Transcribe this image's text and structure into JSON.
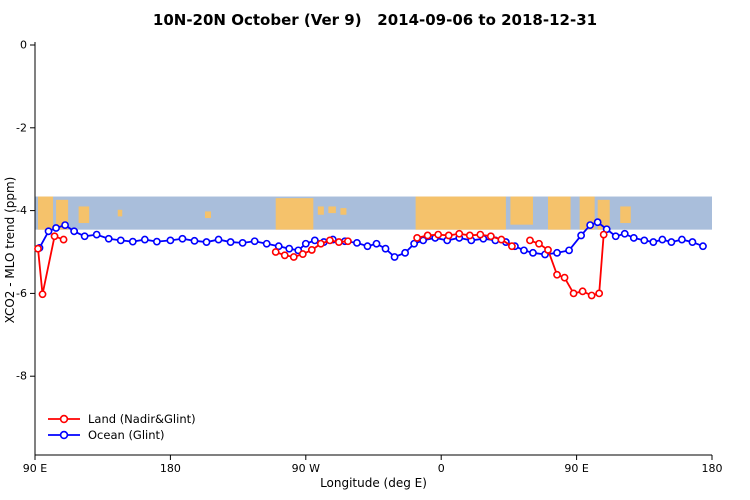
{
  "chart_data": {
    "type": "line",
    "title": "10N-20N October (Ver 9)   2014-09-06 to 2018-12-31",
    "xlabel": "Longitude (deg E)",
    "ylabel": "XCO2 - MLO trend (ppm)",
    "x_range": [
      0,
      450
    ],
    "ylim": [
      -9.9,
      0.1
    ],
    "grid": "off",
    "legend_position": "bottom-left",
    "x_ticks": [
      {
        "label": "90 E",
        "offset": 0
      },
      {
        "label": "180",
        "offset": 90
      },
      {
        "label": "90 W",
        "offset": 180
      },
      {
        "label": "0",
        "offset": 270
      },
      {
        "label": "90 E",
        "offset": 360
      },
      {
        "label": "180",
        "offset": 450
      }
    ],
    "y_ticks": [
      {
        "label": "0",
        "value": 0
      },
      {
        "label": "-2",
        "value": -2
      },
      {
        "label": "-4",
        "value": -4
      },
      {
        "label": "-6",
        "value": -6
      },
      {
        "label": "-8",
        "value": -8
      }
    ],
    "map_band": {
      "description": "world-map strip 10N-20N drawn across the plot",
      "ppm_top": -3.66,
      "ppm_bottom": -4.46,
      "ocean_color": "#a9bedb",
      "land_color": "#f5c26b",
      "land_segments": [
        [
          2,
          12,
          0,
          1
        ],
        [
          14,
          22,
          0.1,
          1
        ],
        [
          29,
          36,
          0.3,
          0.8
        ],
        [
          55,
          58,
          0.4,
          0.6
        ],
        [
          113,
          117,
          0.45,
          0.65
        ],
        [
          160,
          185,
          0.05,
          1
        ],
        [
          188,
          192,
          0.3,
          0.55
        ],
        [
          195,
          200,
          0.3,
          0.5
        ],
        [
          203,
          207,
          0.35,
          0.55
        ],
        [
          253,
          313,
          0,
          1
        ],
        [
          316,
          331,
          0,
          0.85
        ],
        [
          341,
          356,
          0,
          1
        ],
        [
          362,
          372,
          0,
          1
        ],
        [
          374,
          382,
          0.1,
          1
        ],
        [
          389,
          396,
          0.3,
          0.8
        ]
      ]
    },
    "series": [
      {
        "id": "land",
        "name": "Land (Nadir&Glint)",
        "color": "#ff0000",
        "segments": [
          [
            [
              2,
              -4.92
            ],
            [
              5,
              -6.02
            ],
            [
              13,
              -4.62
            ],
            [
              19,
              -4.7
            ]
          ],
          [
            [
              160,
              -5.0
            ],
            [
              166,
              -5.08
            ],
            [
              172,
              -5.12
            ],
            [
              178,
              -5.05
            ],
            [
              184,
              -4.95
            ],
            [
              190,
              -4.8
            ],
            [
              196,
              -4.72
            ],
            [
              202,
              -4.76
            ],
            [
              208,
              -4.74
            ]
          ],
          [
            [
              254,
              -4.66
            ],
            [
              261,
              -4.6
            ],
            [
              268,
              -4.58
            ],
            [
              275,
              -4.6
            ],
            [
              282,
              -4.56
            ],
            [
              289,
              -4.6
            ],
            [
              296,
              -4.58
            ],
            [
              303,
              -4.62
            ],
            [
              310,
              -4.7
            ],
            [
              317,
              -4.86
            ]
          ],
          [
            [
              329,
              -4.72
            ],
            [
              335,
              -4.8
            ],
            [
              341,
              -4.95
            ],
            [
              347,
              -5.55
            ],
            [
              352,
              -5.62
            ],
            [
              358,
              -6.0
            ],
            [
              364,
              -5.95
            ],
            [
              370,
              -6.05
            ],
            [
              375,
              -6.0
            ],
            [
              378,
              -4.58
            ]
          ]
        ]
      },
      {
        "id": "ocean",
        "name": "Ocean (Glint)",
        "color": "#0000ff",
        "segments": [
          [
            [
              3,
              -4.9
            ],
            [
              9,
              -4.5
            ],
            [
              14,
              -4.42
            ],
            [
              20,
              -4.35
            ],
            [
              26,
              -4.5
            ],
            [
              33,
              -4.62
            ],
            [
              41,
              -4.58
            ],
            [
              49,
              -4.68
            ],
            [
              57,
              -4.72
            ],
            [
              65,
              -4.75
            ],
            [
              73,
              -4.7
            ],
            [
              81,
              -4.75
            ],
            [
              90,
              -4.72
            ],
            [
              98,
              -4.68
            ],
            [
              106,
              -4.73
            ],
            [
              114,
              -4.76
            ],
            [
              122,
              -4.7
            ],
            [
              130,
              -4.76
            ],
            [
              138,
              -4.78
            ],
            [
              146,
              -4.74
            ],
            [
              154,
              -4.8
            ],
            [
              162,
              -4.86
            ],
            [
              169,
              -4.92
            ],
            [
              175,
              -4.96
            ],
            [
              180,
              -4.8
            ],
            [
              186,
              -4.72
            ],
            [
              192,
              -4.76
            ],
            [
              198,
              -4.7
            ],
            [
              206,
              -4.74
            ],
            [
              214,
              -4.78
            ],
            [
              221,
              -4.86
            ],
            [
              227,
              -4.8
            ],
            [
              233,
              -4.92
            ],
            [
              239,
              -5.12
            ],
            [
              246,
              -5.02
            ],
            [
              252,
              -4.8
            ],
            [
              258,
              -4.72
            ],
            [
              266,
              -4.66
            ],
            [
              274,
              -4.72
            ],
            [
              282,
              -4.66
            ],
            [
              290,
              -4.72
            ],
            [
              298,
              -4.68
            ],
            [
              306,
              -4.72
            ],
            [
              313,
              -4.76
            ],
            [
              319,
              -4.86
            ],
            [
              325,
              -4.96
            ],
            [
              331,
              -5.02
            ],
            [
              339,
              -5.06
            ],
            [
              347,
              -5.02
            ],
            [
              355,
              -4.96
            ],
            [
              363,
              -4.6
            ],
            [
              369,
              -4.35
            ],
            [
              374,
              -4.28
            ],
            [
              380,
              -4.45
            ],
            [
              386,
              -4.62
            ],
            [
              392,
              -4.56
            ],
            [
              398,
              -4.66
            ],
            [
              405,
              -4.72
            ],
            [
              411,
              -4.76
            ],
            [
              417,
              -4.7
            ],
            [
              423,
              -4.76
            ],
            [
              430,
              -4.7
            ],
            [
              437,
              -4.76
            ],
            [
              444,
              -4.86
            ]
          ]
        ]
      }
    ]
  }
}
